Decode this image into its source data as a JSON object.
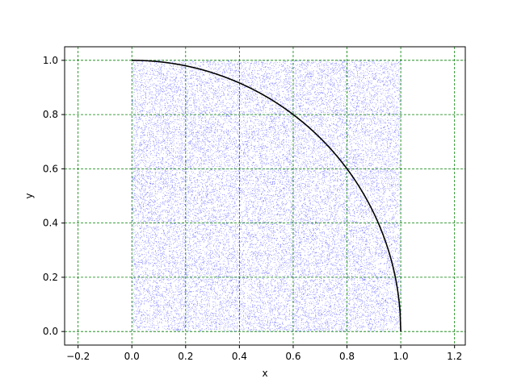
{
  "chart_data": {
    "type": "scatter",
    "title": "",
    "xlabel": "x",
    "ylabel": "y",
    "xlim": [
      -0.25,
      1.24
    ],
    "ylim": [
      -0.05,
      1.05
    ],
    "xticks": [
      -0.2,
      0.0,
      0.2,
      0.4,
      0.6,
      0.8,
      1.0,
      1.2
    ],
    "xtick_labels": [
      "−0.2",
      "0.0",
      "0.2",
      "0.4",
      "0.6",
      "0.8",
      "1.0",
      "1.2"
    ],
    "yticks": [
      0.0,
      0.2,
      0.4,
      0.6,
      0.8,
      1.0
    ],
    "ytick_labels": [
      "0.0",
      "0.2",
      "0.4",
      "0.6",
      "0.8",
      "1.0"
    ],
    "grid": true,
    "grid_color": "#008000",
    "grid_style": "dashed",
    "scatter": {
      "distribution": "uniform",
      "x_range": [
        0.0,
        1.0
      ],
      "y_range": [
        0.0,
        1.0
      ],
      "color": "#0000ff"
    },
    "curve": {
      "equation": "y = sqrt(1 - x^2)",
      "x_range": [
        0.0,
        1.0
      ],
      "color": "#000000"
    },
    "legend": "none"
  }
}
